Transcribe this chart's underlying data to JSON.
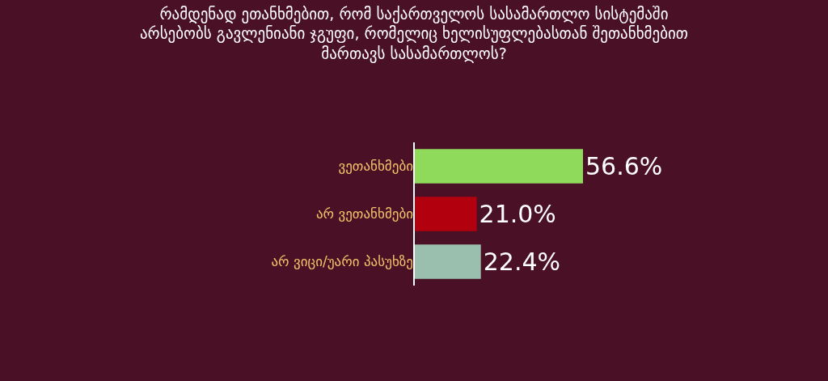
{
  "chart_data": {
    "type": "bar",
    "orientation": "horizontal",
    "title": "რამდენად ეთანხმებით, რომ საქართველოს სასამართლო სისტემაში არსებობს გავლენიანი ჯგუფი, რომელიც ხელისუფლებასთან შეთანხმებით მართავს სასამართლოს?",
    "categories": [
      "ვეთანხმები",
      "არ ვეთანხმები",
      "არ ვიცი/უარი პასუხზე"
    ],
    "values": [
      56.6,
      21.0,
      22.4
    ],
    "colors": [
      "#8fd95b",
      "#b3000f",
      "#9bbfae"
    ],
    "value_labels": [
      "56.6%",
      "21.0%",
      "22.4%"
    ],
    "tick_labels": "y",
    "grid": false,
    "legend": false
  }
}
